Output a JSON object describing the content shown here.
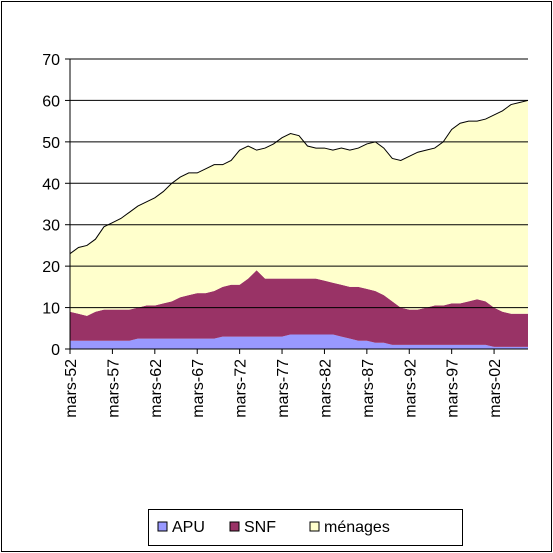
{
  "chart_data": {
    "type": "stacked-area",
    "categories": [
      "mars-52",
      null,
      null,
      null,
      null,
      "mars-57",
      null,
      null,
      null,
      null,
      "mars-62",
      null,
      null,
      null,
      null,
      "mars-67",
      null,
      null,
      null,
      null,
      "mars-72",
      null,
      null,
      null,
      null,
      "mars-77",
      null,
      null,
      null,
      null,
      "mars-82",
      null,
      null,
      null,
      null,
      "mars-87",
      null,
      null,
      null,
      null,
      "mars-92",
      null,
      null,
      null,
      null,
      "mars-97",
      null,
      null,
      null,
      null,
      "mars-02",
      null,
      null,
      null,
      null
    ],
    "series": [
      {
        "name": "APU",
        "color": "#9999ff",
        "values": [
          2,
          2,
          2,
          2,
          2,
          2,
          2,
          2,
          2.5,
          2.5,
          2.5,
          2.5,
          2.5,
          2.5,
          2.5,
          2.5,
          2.5,
          2.5,
          3,
          3,
          3,
          3,
          3,
          3,
          3,
          3,
          3.5,
          3.5,
          3.5,
          3.5,
          3.5,
          3.5,
          3,
          2.5,
          2,
          2,
          1.5,
          1.5,
          1,
          1,
          1,
          1,
          1,
          1,
          1,
          1,
          1,
          1,
          1,
          1,
          0.5,
          0.5,
          0.5,
          0.5,
          0.5
        ]
      },
      {
        "name": "SNF",
        "color": "#993366",
        "values": [
          7,
          6.5,
          6,
          7,
          7.5,
          7.5,
          7.5,
          7.5,
          7.5,
          8,
          8,
          8.5,
          9,
          10,
          10.5,
          11,
          11,
          11.5,
          12,
          12.5,
          12.5,
          14,
          16,
          14,
          14,
          14,
          13.5,
          13.5,
          13.5,
          13.5,
          13,
          12.5,
          12.5,
          12.5,
          13,
          12.5,
          12.5,
          11.5,
          10.5,
          9,
          8.5,
          8.5,
          9,
          9.5,
          9.5,
          10,
          10,
          10.5,
          11,
          10.5,
          9.5,
          8.5,
          8,
          8,
          8
        ]
      },
      {
        "name": "ménages",
        "color": "#ffffcc",
        "values": [
          14,
          16,
          17,
          17.5,
          20,
          21,
          22,
          23.5,
          24.5,
          25,
          26,
          27,
          28.5,
          29,
          29.5,
          29,
          30,
          30.5,
          29.5,
          30,
          32.5,
          32,
          29,
          31.5,
          32.5,
          34,
          35,
          34.5,
          32,
          31.5,
          32,
          32,
          33,
          33,
          33.5,
          35,
          36,
          35.5,
          34.5,
          35.5,
          37,
          38,
          38,
          38,
          39.5,
          42,
          43.5,
          43.5,
          43,
          44,
          46.5,
          48.5,
          50.5,
          51,
          51.5
        ]
      }
    ],
    "ylim": [
      0,
      70
    ],
    "yticks": [
      0,
      10,
      20,
      30,
      40,
      50,
      60,
      70
    ],
    "grid": true,
    "legend": "bottom"
  }
}
